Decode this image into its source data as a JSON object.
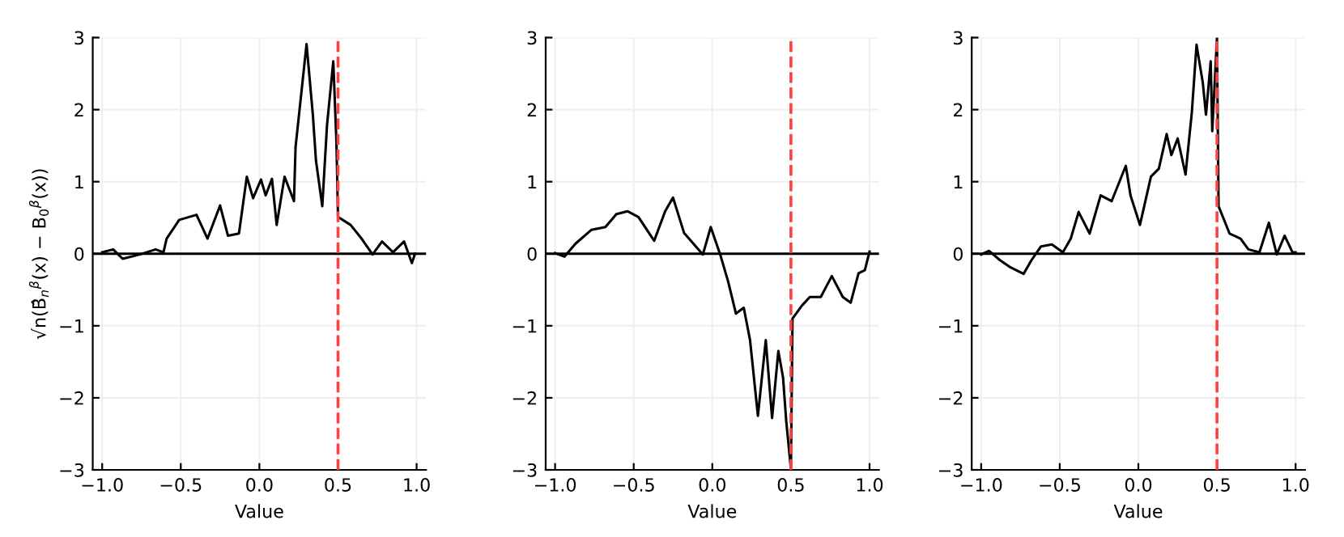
{
  "chart_data": [
    {
      "type": "line",
      "xlabel": "Value",
      "ylabel": "√n(B̂$_{n}$$^{β}$(x) − B$_{0}$$^{β}$(x))",
      "xlim": [
        -1.06,
        1.06
      ],
      "ylim": [
        -3,
        3
      ],
      "xticks": [
        {
          "value": -1,
          "label": "−1.0"
        },
        {
          "value": -0.5,
          "label": "−0.5"
        },
        {
          "value": 0,
          "label": "0.0"
        },
        {
          "value": 0.5,
          "label": "0.5"
        },
        {
          "value": 1,
          "label": "1.0"
        }
      ],
      "yticks": [
        {
          "value": -3,
          "label": "−3"
        },
        {
          "value": -2,
          "label": "−2"
        },
        {
          "value": -1,
          "label": "−1"
        },
        0,
        1,
        2,
        3
      ],
      "grid": true,
      "legend": false,
      "ref_lines": [
        {
          "axis": "y",
          "value": 0,
          "color": "#000000",
          "line_style": "solid"
        },
        {
          "axis": "x",
          "value": 0.5,
          "color": "#ff4040",
          "line_style": "dashed"
        }
      ],
      "series": [
        {
          "color": "#000000",
          "x": [
            -1.0,
            -0.93,
            -0.87,
            -0.76,
            -0.66,
            -0.61,
            -0.59,
            -0.51,
            -0.4,
            -0.33,
            -0.25,
            -0.2,
            -0.13,
            -0.08,
            -0.04,
            0.01,
            0.04,
            0.08,
            0.11,
            0.16,
            0.22,
            0.23,
            0.3,
            0.34,
            0.36,
            0.4,
            0.43,
            0.47,
            0.49,
            0.5,
            0.58,
            0.65,
            0.72,
            0.78,
            0.85,
            0.92,
            0.97,
            0.99
          ],
          "values": [
            0.02,
            0.06,
            -0.07,
            -0.01,
            0.06,
            0.02,
            0.21,
            0.47,
            0.54,
            0.21,
            0.67,
            0.25,
            0.28,
            1.07,
            0.77,
            1.03,
            0.81,
            1.04,
            0.4,
            1.07,
            0.73,
            1.48,
            2.91,
            1.93,
            1.29,
            0.66,
            1.78,
            2.67,
            1.55,
            0.51,
            0.4,
            0.21,
            -0.01,
            0.17,
            0.02,
            0.17,
            -0.13,
            0.0
          ]
        }
      ]
    },
    {
      "type": "line",
      "xlabel": "Value",
      "xlim": [
        -1.06,
        1.06
      ],
      "ylim": [
        -3,
        3
      ],
      "xticks": [
        {
          "value": -1,
          "label": "−1.0"
        },
        {
          "value": -0.5,
          "label": "−0.5"
        },
        {
          "value": 0,
          "label": "0.0"
        },
        {
          "value": 0.5,
          "label": "0.5"
        },
        {
          "value": 1,
          "label": "1.0"
        }
      ],
      "yticks": [
        {
          "value": -3,
          "label": "−3"
        },
        {
          "value": -2,
          "label": "−2"
        },
        {
          "value": -1,
          "label": "−1"
        },
        0,
        1,
        2,
        3
      ],
      "grid": true,
      "legend": false,
      "ref_lines": [
        {
          "axis": "y",
          "value": 0,
          "color": "#000000",
          "line_style": "solid"
        },
        {
          "axis": "x",
          "value": 0.5,
          "color": "#ff4040",
          "line_style": "dashed"
        }
      ],
      "series": [
        {
          "color": "#000000",
          "x": [
            -1.0,
            -0.94,
            -0.87,
            -0.77,
            -0.68,
            -0.61,
            -0.54,
            -0.47,
            -0.37,
            -0.3,
            -0.25,
            -0.18,
            -0.06,
            -0.01,
            0.05,
            0.1,
            0.15,
            0.2,
            0.24,
            0.29,
            0.34,
            0.38,
            0.42,
            0.45,
            0.47,
            0.5,
            0.51,
            0.57,
            0.62,
            0.69,
            0.76,
            0.83,
            0.88,
            0.93,
            0.97,
            1.0
          ],
          "values": [
            0.01,
            -0.04,
            0.14,
            0.33,
            0.37,
            0.55,
            0.59,
            0.51,
            0.18,
            0.59,
            0.78,
            0.29,
            -0.01,
            0.37,
            -0.01,
            -0.38,
            -0.83,
            -0.75,
            -1.2,
            -2.25,
            -1.2,
            -2.28,
            -1.35,
            -1.72,
            -2.32,
            -2.99,
            -0.9,
            -0.72,
            -0.6,
            -0.6,
            -0.31,
            -0.6,
            -0.68,
            -0.27,
            -0.23,
            0.03
          ]
        }
      ]
    },
    {
      "type": "line",
      "xlabel": "Value",
      "xlim": [
        -1.06,
        1.06
      ],
      "ylim": [
        -3,
        3
      ],
      "xticks": [
        {
          "value": -1,
          "label": "−1.0"
        },
        {
          "value": -0.5,
          "label": "−0.5"
        },
        {
          "value": 0,
          "label": "0.0"
        },
        {
          "value": 0.5,
          "label": "0.5"
        },
        {
          "value": 1,
          "label": "1.0"
        }
      ],
      "yticks": [
        {
          "value": -3,
          "label": "−3"
        },
        {
          "value": -2,
          "label": "−2"
        },
        {
          "value": -1,
          "label": "−1"
        },
        0,
        1,
        2,
        3
      ],
      "grid": true,
      "legend": false,
      "ref_lines": [
        {
          "axis": "y",
          "value": 0,
          "color": "#000000",
          "line_style": "solid"
        },
        {
          "axis": "x",
          "value": 0.5,
          "color": "#ff4040",
          "line_style": "dashed"
        }
      ],
      "series": [
        {
          "color": "#000000",
          "x": [
            -1.0,
            -0.95,
            -0.88,
            -0.82,
            -0.73,
            -0.68,
            -0.62,
            -0.55,
            -0.48,
            -0.43,
            -0.38,
            -0.31,
            -0.24,
            -0.17,
            -0.08,
            -0.05,
            0.01,
            0.08,
            0.13,
            0.18,
            0.21,
            0.25,
            0.3,
            0.34,
            0.37,
            0.41,
            0.43,
            0.46,
            0.47,
            0.5,
            0.51,
            0.58,
            0.65,
            0.7,
            0.77,
            0.83,
            0.88,
            0.93,
            0.98,
            1.0
          ],
          "values": [
            -0.01,
            0.04,
            -0.09,
            -0.18,
            -0.28,
            -0.09,
            0.1,
            0.13,
            0.02,
            0.21,
            0.58,
            0.28,
            0.81,
            0.73,
            1.22,
            0.81,
            0.4,
            1.07,
            1.18,
            1.66,
            1.37,
            1.6,
            1.1,
            1.96,
            2.9,
            2.37,
            1.93,
            2.67,
            1.7,
            3.0,
            0.66,
            0.28,
            0.21,
            0.06,
            0.02,
            0.43,
            -0.01,
            0.25,
            0.02,
            0.02
          ]
        }
      ]
    }
  ]
}
